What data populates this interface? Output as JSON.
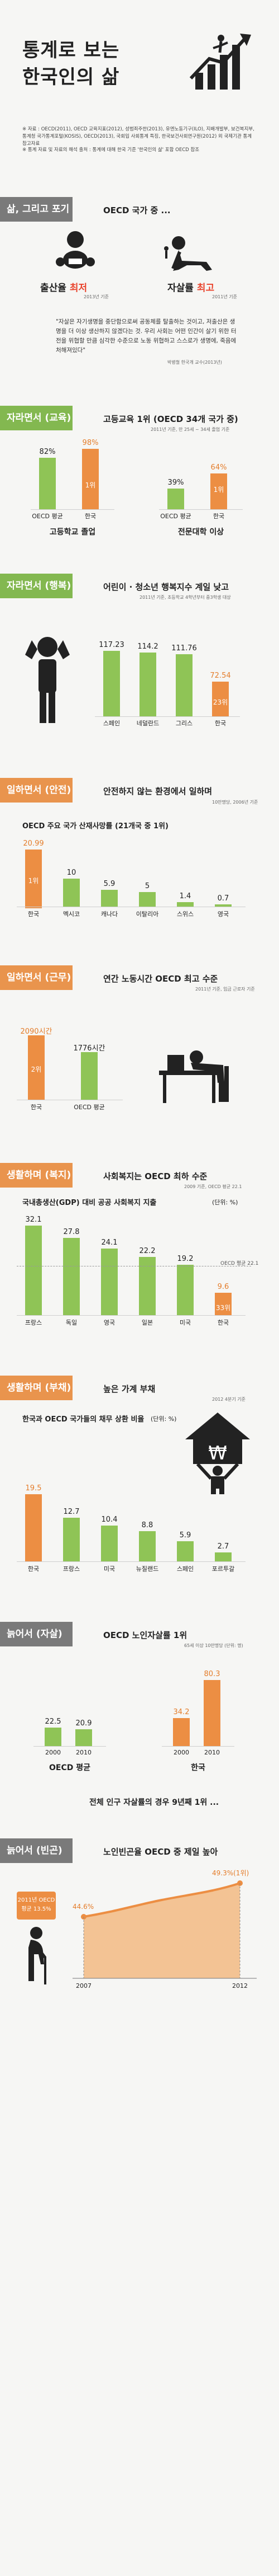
{
  "header": {
    "title_line1": "통계로 보는",
    "title_line2": "한국인의 삶",
    "source_text": "※ 자료 : OECD(2011), OECD 교육지표(2012), 성범죄주한(2013), 유엔노동기구(ILO), 지배개발부, 보건복지부, 통계청 국가통계포털(KOSIS), OECD(2013), 국회입 사회통계 특징, 한국보건사회연구원(2012) 외 국제기관 통계 참고자료",
    "notice": "※ 통계 자료 및 자료의 해석 출처 : 통계에 대해 한국 기준 '한국인의 삶' 포함 OECD 참조"
  },
  "sections": [
    {
      "band": "삶, 그리고 포기",
      "title": "OECD 국가 중 ...",
      "birth_label_prefix": "출산율 ",
      "birth_label_em": "최저",
      "birth_year": "2013년 기준",
      "suicide_label_prefix": "자살률 ",
      "suicide_label_em": "최고",
      "suicide_year": "2011년 기준",
      "quote": "\"자살은 자기생명을 중단함으로써 공동체를 탈출하는 것이고, 저출산은 생명을 더 이상 생산하지 않겠다는 것. 우리 사회는 어떤 인간이 살기 위한 터전을 위협할 만큼 심각한 수준으로 노동 위협하고 스스로가 생명에, 죽음에 처해져있다\"",
      "quote_source": "박병철 한국개 교수(2013년)"
    },
    {
      "band": "자라면서 (교육)",
      "title": "고등교육 1위 (OECD 34개 국가 중)",
      "note": "2011년 기준, 만 25세 ~ 34세 졸업 기준",
      "left_chart": {
        "caption": "고등학교 졸업",
        "categories": [
          "OECD 평균",
          "한국"
        ],
        "values": [
          "82%",
          "98%"
        ],
        "rank_label": "1위"
      },
      "right_chart": {
        "caption": "전문대학 이상",
        "categories": [
          "OECD 평균",
          "한국"
        ],
        "values": [
          "39%",
          "64%"
        ],
        "rank_label": "1위"
      }
    },
    {
      "band": "자라면서 (행복)",
      "title": "어린이 · 청소년 행복지수 계일 낮고",
      "note": "2011년 기준, 초등학교 4학년부터 중3학생 대상",
      "categories": [
        "스페인",
        "네덜란드",
        "그리스",
        "한국"
      ],
      "values": [
        "117.23",
        "114.2",
        "111.76",
        "72.54"
      ],
      "rank_label": "23위"
    },
    {
      "band": "일하면서 (안전)",
      "title": "안전하지 않는 환경에서 일하며",
      "note": "10만명당, 2006년 기준",
      "subtitle": "OECD 주요 국가 산재사망률 (21개국 중 1위)",
      "categories": [
        "한국",
        "멕시코",
        "캐나다",
        "이탈리아",
        "스위스",
        "영국"
      ],
      "values": [
        "20.99",
        "10",
        "5.9",
        "5",
        "1.4",
        "0.7"
      ],
      "rank_label": "1위"
    },
    {
      "band": "일하면서 (근무)",
      "title": "연간 노동시간 OECD 최고 수준",
      "note": "2011년 기준, 임금 근로자 기준",
      "categories": [
        "한국",
        "OECD 평균"
      ],
      "values": [
        "2090시간",
        "1776시간"
      ],
      "rank_label": "2위"
    },
    {
      "band": "생활하며 (복지)",
      "title": "사회복지는 OECD 최하 수준",
      "note": "2009 기준, OECD 평균 22.1",
      "subtitle": "국내총생산(GDP) 대비 공공 사회복지 지출",
      "unit": "(단위: %)",
      "categories": [
        "프랑스",
        "독일",
        "영국",
        "일본",
        "미국",
        "한국"
      ],
      "values": [
        "32.1",
        "27.8",
        "24.1",
        "22.2",
        "19.2",
        "9.6"
      ],
      "avg_label": "OECD 평균 22.1",
      "rank_label": "33위"
    },
    {
      "band": "생활하며 (부채)",
      "title": "높은 가계 부채",
      "note": "2012 4분기 기준",
      "subtitle": "한국과 OECD 국가들의 채무 상환 비율",
      "unit": "(단위: %)",
      "categories": [
        "한국",
        "프랑스",
        "미국",
        "뉴질랜드",
        "스페인",
        "포르투갈"
      ],
      "values": [
        "19.5",
        "12.7",
        "10.4",
        "8.8",
        "5.9",
        "2.7"
      ],
      "currency_symbol": "₩"
    },
    {
      "band": "늙어서 (자살)",
      "title": "OECD 노인자살률 1위",
      "note": "65세 이상 10만명당 (단위: 명)",
      "groups": [
        {
          "caption": "OECD 평균",
          "years": [
            "2000",
            "2010"
          ],
          "values": [
            "22.5",
            "20.9"
          ]
        },
        {
          "caption": "한국",
          "years": [
            "2000",
            "2010"
          ],
          "values": [
            "34.2",
            "80.3"
          ]
        }
      ],
      "footer": "전체 인구 자살률의 경우 9년째 1위 ..."
    },
    {
      "band": "늙어서 (빈곤)",
      "title": "노인빈곤율 OECD 중 제일 높아",
      "callout_line1": "2011년 OECD",
      "callout_line2": "평균 13.5%",
      "start_value": "44.6%",
      "end_value": "49.3%(1위)",
      "years": [
        "2007",
        "2012"
      ]
    }
  ],
  "chart_data": [
    {
      "type": "bar",
      "title": "고등학교 졸업",
      "categories": [
        "OECD 평균",
        "한국"
      ],
      "values": [
        82,
        98
      ],
      "unit": "%"
    },
    {
      "type": "bar",
      "title": "전문대학 이상",
      "categories": [
        "OECD 평균",
        "한국"
      ],
      "values": [
        39,
        64
      ],
      "unit": "%"
    },
    {
      "type": "bar",
      "title": "어린이 · 청소년 행복지수 계일 낮고",
      "categories": [
        "스페인",
        "네덜란드",
        "그리스",
        "한국"
      ],
      "values": [
        117.23,
        114.2,
        111.76,
        72.54
      ]
    },
    {
      "type": "bar",
      "title": "OECD 주요 국가 산재사망률 (21개국 중 1위)",
      "categories": [
        "한국",
        "멕시코",
        "캐나다",
        "이탈리아",
        "스위스",
        "영국"
      ],
      "values": [
        20.99,
        10,
        5.9,
        5,
        1.4,
        0.7
      ]
    },
    {
      "type": "bar",
      "title": "연간 노동시간 OECD 최고 수준",
      "categories": [
        "한국",
        "OECD 평균"
      ],
      "values": [
        2090,
        1776
      ],
      "unit": "시간"
    },
    {
      "type": "bar",
      "title": "국내총생산(GDP) 대비 공공 사회복지 지출",
      "categories": [
        "프랑스",
        "독일",
        "영국",
        "일본",
        "미국",
        "한국"
      ],
      "values": [
        32.1,
        27.8,
        24.1,
        22.2,
        19.2,
        9.6
      ],
      "unit": "%",
      "reference_line": 22.1
    },
    {
      "type": "bar",
      "title": "한국과 OECD 국가들의 채무 상환 비율",
      "categories": [
        "한국",
        "프랑스",
        "미국",
        "뉴질랜드",
        "스페인",
        "포르투갈"
      ],
      "values": [
        19.5,
        12.7,
        10.4,
        8.8,
        5.9,
        2.7
      ],
      "unit": "%"
    },
    {
      "type": "bar",
      "title": "OECD 노인자살률 1위",
      "categories": [
        "2000",
        "2010"
      ],
      "series": [
        {
          "name": "OECD 평균",
          "values": [
            22.5,
            20.9
          ]
        },
        {
          "name": "한국",
          "values": [
            34.2,
            80.3
          ]
        }
      ]
    },
    {
      "type": "line",
      "title": "노인빈곤율 OECD 중 제일 높아",
      "x": [
        "2007",
        "2012"
      ],
      "values": [
        44.6,
        49.3
      ],
      "unit": "%"
    }
  ],
  "colors": {
    "green": "#8fc456",
    "orange": "#ec8e43",
    "dark": "#222222"
  }
}
